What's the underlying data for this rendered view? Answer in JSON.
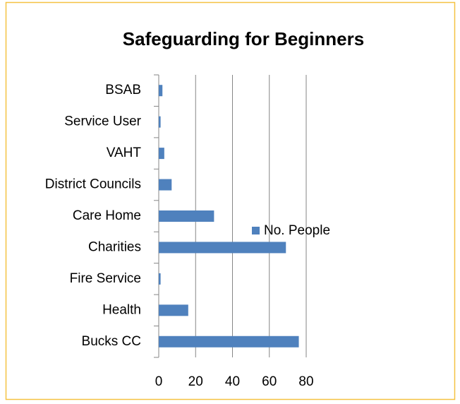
{
  "chart_data": {
    "type": "bar",
    "orientation": "horizontal",
    "title": "Safeguarding for Beginners",
    "categories": [
      "BSAB",
      "Service User",
      "VAHT",
      "District Councils",
      "Care Home",
      "Charities",
      "Fire Service",
      "Health",
      "Bucks CC"
    ],
    "series": [
      {
        "name": "No. People",
        "color": "#4f81bd",
        "values": [
          2,
          1,
          3,
          7,
          30,
          69,
          1,
          16,
          76
        ]
      }
    ],
    "xlim": [
      0,
      80
    ],
    "xticks": [
      0,
      20,
      40,
      60,
      80
    ],
    "grid": true,
    "legend": "right"
  }
}
